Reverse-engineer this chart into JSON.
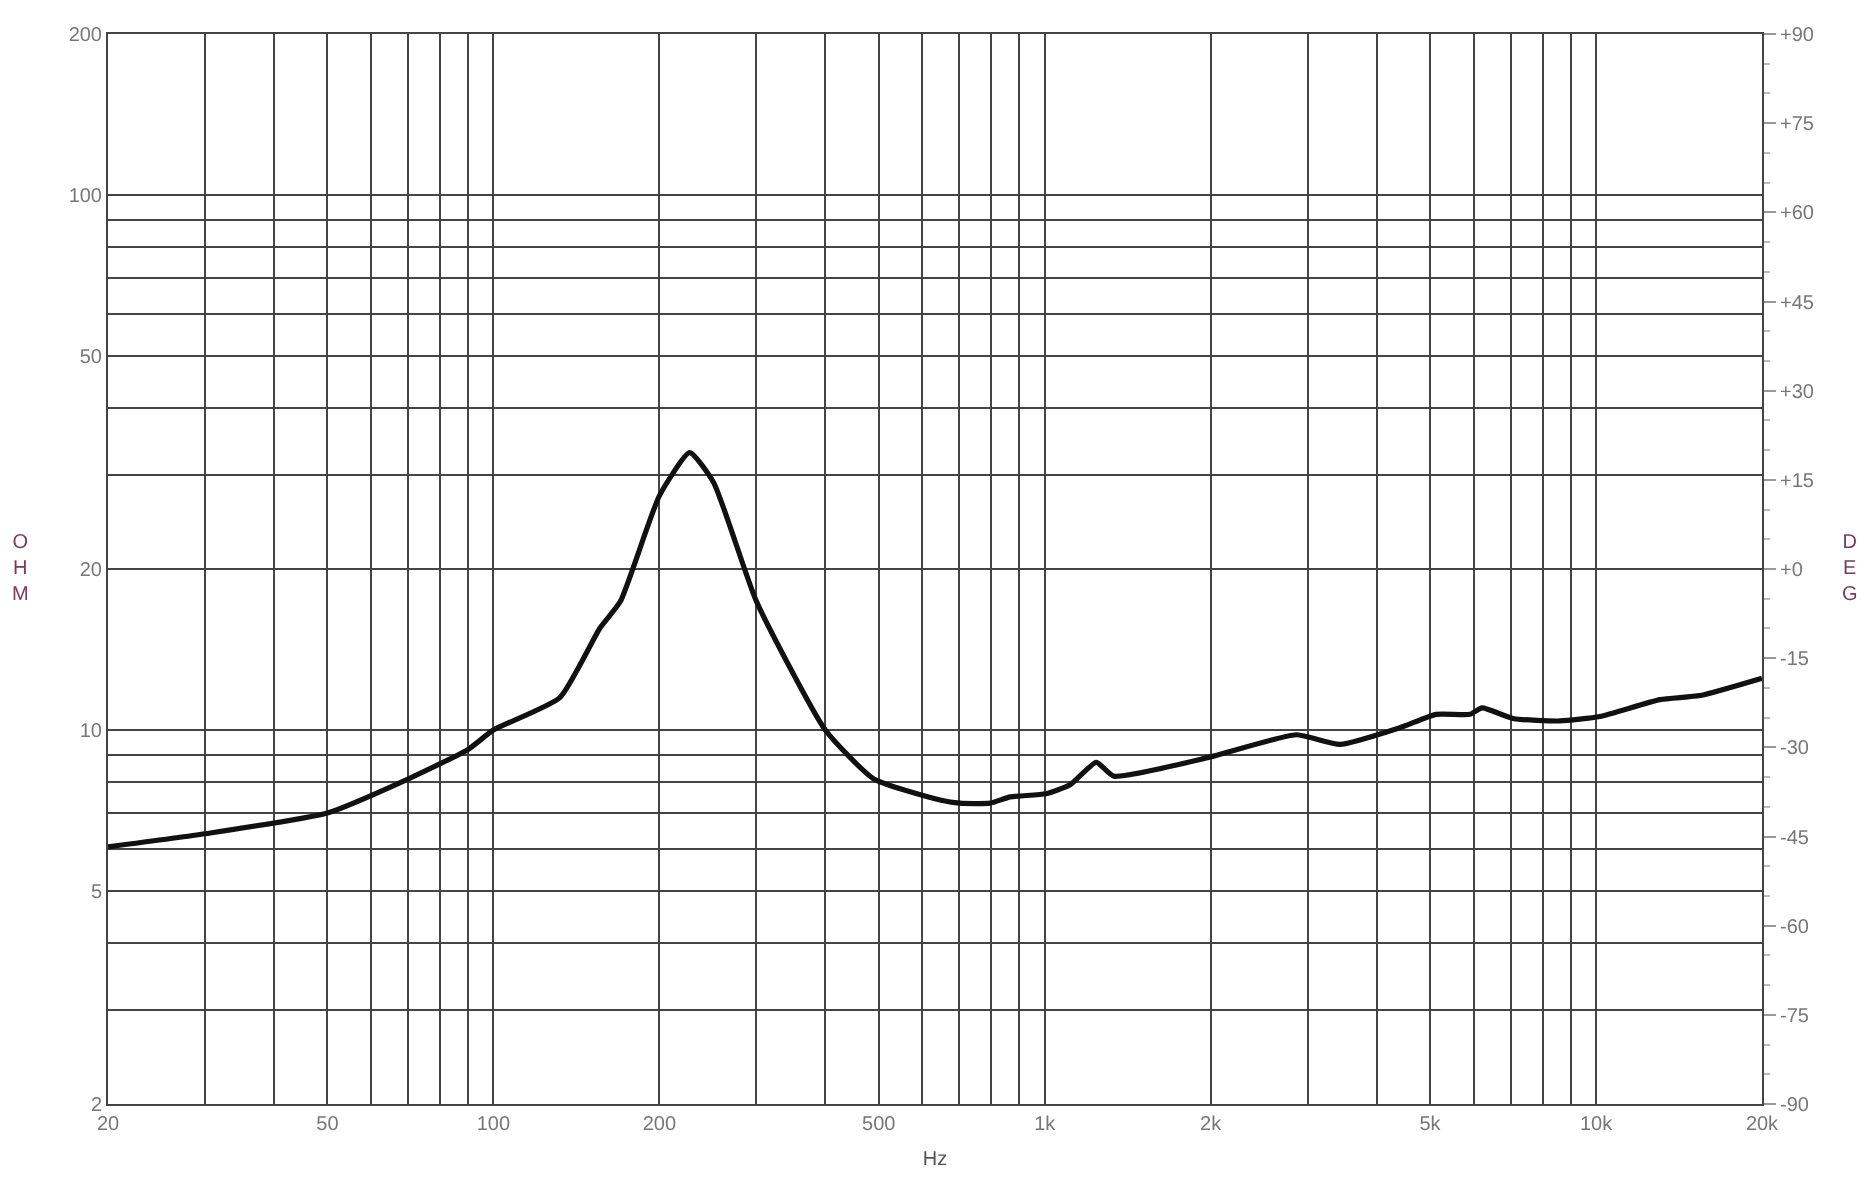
{
  "chart_data": {
    "type": "line",
    "xlabel": "Hz",
    "ylabel": "OHM",
    "y2label": "DEG",
    "log": "xy",
    "grid": true,
    "marker": "none",
    "line_style": "solid",
    "x": [
      20,
      30,
      50,
      70,
      90,
      100,
      132,
      156,
      170,
      200,
      227,
      251,
      300,
      400,
      490,
      646,
      702,
      796,
      866,
      1005,
      1112,
      1240,
      1336,
      1994,
      2857,
      3432,
      4407,
      5128,
      5905,
      6212,
      7100,
      8600,
      10160,
      13060,
      15440,
      20000
    ],
    "series": [
      {
        "color": "#111111",
        "values": [
          6.05,
          6.4,
          7.0,
          8.1,
          9.2,
          10,
          11.5,
          15.5,
          17.4,
          27.4,
          33,
          29,
          17.4,
          10,
          8.1,
          7.4,
          7.3,
          7.3,
          7.5,
          7.6,
          7.9,
          8.7,
          8.2,
          8.9,
          9.8,
          9.4,
          10.1,
          10.7,
          10.7,
          11.0,
          10.5,
          10.4,
          10.6,
          11.4,
          11.6,
          12.5
        ]
      }
    ],
    "xlim": [
      20,
      20000
    ],
    "xticks": [
      20,
      {
        "value": 30,
        "label": null
      },
      {
        "value": 40,
        "label": null
      },
      50,
      {
        "value": 60,
        "label": null
      },
      {
        "value": 70,
        "label": null
      },
      {
        "value": 80,
        "label": null
      },
      {
        "value": 90,
        "label": null
      },
      100,
      200,
      {
        "value": 300,
        "label": null
      },
      {
        "value": 400,
        "label": null
      },
      500,
      {
        "value": 600,
        "label": null
      },
      {
        "value": 700,
        "label": null
      },
      {
        "value": 800,
        "label": null
      },
      {
        "value": 900,
        "label": null
      },
      {
        "value": 1000,
        "label": "1k"
      },
      {
        "value": 2000,
        "label": "2k"
      },
      {
        "value": 3000,
        "label": null
      },
      {
        "value": 4000,
        "label": null
      },
      {
        "value": 5000,
        "label": "5k"
      },
      {
        "value": 6000,
        "label": null
      },
      {
        "value": 7000,
        "label": null
      },
      {
        "value": 8000,
        "label": null
      },
      {
        "value": 9000,
        "label": null
      },
      {
        "value": 10000,
        "label": "10k"
      },
      {
        "value": 20000,
        "label": "20k"
      }
    ],
    "ylim": [
      2,
      200
    ],
    "yticks": [
      2,
      {
        "value": 3,
        "label": null
      },
      {
        "value": 4,
        "label": null
      },
      5,
      {
        "value": 6,
        "label": null
      },
      {
        "value": 7,
        "label": null
      },
      {
        "value": 8,
        "label": null
      },
      {
        "value": 9,
        "label": null
      },
      10,
      20,
      {
        "value": 30,
        "label": null
      },
      {
        "value": 40,
        "label": null
      },
      50,
      {
        "value": 60,
        "label": null
      },
      {
        "value": 70,
        "label": null
      },
      {
        "value": 80,
        "label": null
      },
      {
        "value": 90,
        "label": null
      },
      100,
      200
    ],
    "y2lim": [
      -90,
      90
    ],
    "y2ticks": [
      {
        "value": 90,
        "label": "+90"
      },
      {
        "value": 75,
        "label": "+75"
      },
      {
        "value": 60,
        "label": "+60"
      },
      {
        "value": 45,
        "label": "+45"
      },
      {
        "value": 30,
        "label": "+30"
      },
      {
        "value": 15,
        "label": "+15"
      },
      {
        "value": 0,
        "label": "+0"
      },
      {
        "value": -15,
        "label": "-15"
      },
      {
        "value": -30,
        "label": "-30"
      },
      {
        "value": -45,
        "label": "-45"
      },
      {
        "value": -60,
        "label": "-60"
      },
      {
        "value": -75,
        "label": "-75"
      },
      {
        "value": -90,
        "label": "-90"
      }
    ]
  }
}
